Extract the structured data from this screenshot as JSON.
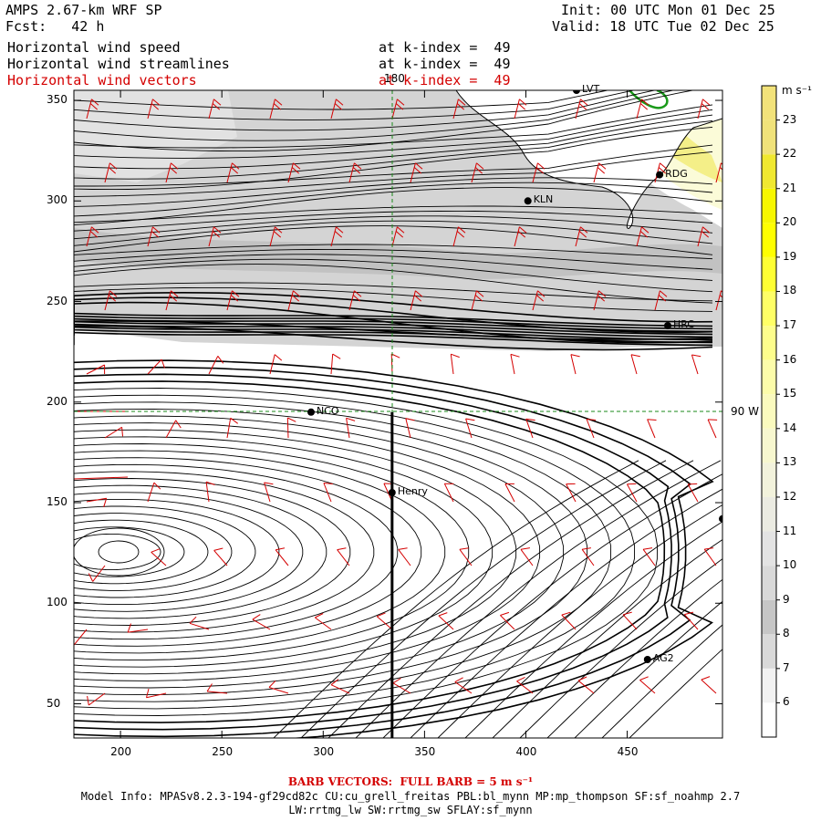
{
  "header": {
    "title": "AMPS 2.67-km WRF SP",
    "forecast": "Fcst:   42 h",
    "init": "Init: 00 UTC Mon 01 Dec 25",
    "valid": "Valid: 18 UTC Tue 02 Dec 25",
    "fields": [
      {
        "name": "Horizontal wind speed",
        "level": "at k-index =  49",
        "color": "#000000"
      },
      {
        "name": "Horizontal wind streamlines",
        "level": "at k-index =  49",
        "color": "#000000"
      },
      {
        "name": "Horizontal wind vectors",
        "level": "at k-index =  49",
        "color": "#d40000"
      }
    ]
  },
  "map": {
    "meridian_label": "180",
    "parallel_label": "90 W"
  },
  "stations": [
    {
      "name": "LVT",
      "x": 425,
      "y": 355
    },
    {
      "name": "RDG",
      "x": 466,
      "y": 313
    },
    {
      "name": "KLN",
      "x": 401,
      "y": 300
    },
    {
      "name": "HRC",
      "x": 470,
      "y": 238
    },
    {
      "name": "NCO",
      "x": 294,
      "y": 195
    },
    {
      "name": "Henry",
      "x": 334,
      "y": 155
    },
    {
      "name": "AG2",
      "x": 460,
      "y": 72
    },
    {
      "name": "",
      "x": 497,
      "y": 142
    }
  ],
  "colorbar": {
    "unit": "m s⁻¹",
    "labels": [
      "6",
      "7",
      "8",
      "9",
      "10",
      "11",
      "12",
      "13",
      "14",
      "15",
      "16",
      "17",
      "18",
      "19",
      "20",
      "21",
      "22",
      "23"
    ],
    "colors": [
      "#ffffff",
      "#f2f2f2",
      "#d9d9d9",
      "#c6c6c6",
      "#d9d9d9",
      "#e3e3e3",
      "#ebebe2",
      "#f2f2dc",
      "#f7f7cf",
      "#fafabe",
      "#fcfcaa",
      "#fdfd8c",
      "#ffff66",
      "#ffff33",
      "#ffff00",
      "#f7f700",
      "#f0e830",
      "#f0e27a"
    ]
  },
  "chart_data": {
    "type": "streamline-map",
    "title": "AMPS 2.67-km WRF SP",
    "xlim": [
      177,
      497
    ],
    "ylim": [
      33,
      355
    ],
    "x_ticks": [
      200,
      250,
      300,
      350,
      400,
      450
    ],
    "y_ticks": [
      50,
      100,
      150,
      200,
      250,
      300,
      350
    ],
    "cross_section_x": 334,
    "cross_section_y_range": [
      33,
      195
    ],
    "colorbar_range_ms": [
      5,
      24
    ]
  },
  "footer": {
    "barb_note": "BARB VECTORS:  FULL BARB = 5 m s⁻¹",
    "model_info": "Model Info: MPASv8.2.3-194-gf29cd82c CU:cu_grell_freitas PBL:bl_mynn MP:mp_thompson SF:sf_noahmp 2.7",
    "model_info2": "LW:rrtmg_lw SW:rrtmg_sw SFLAY:sf_mynn"
  }
}
